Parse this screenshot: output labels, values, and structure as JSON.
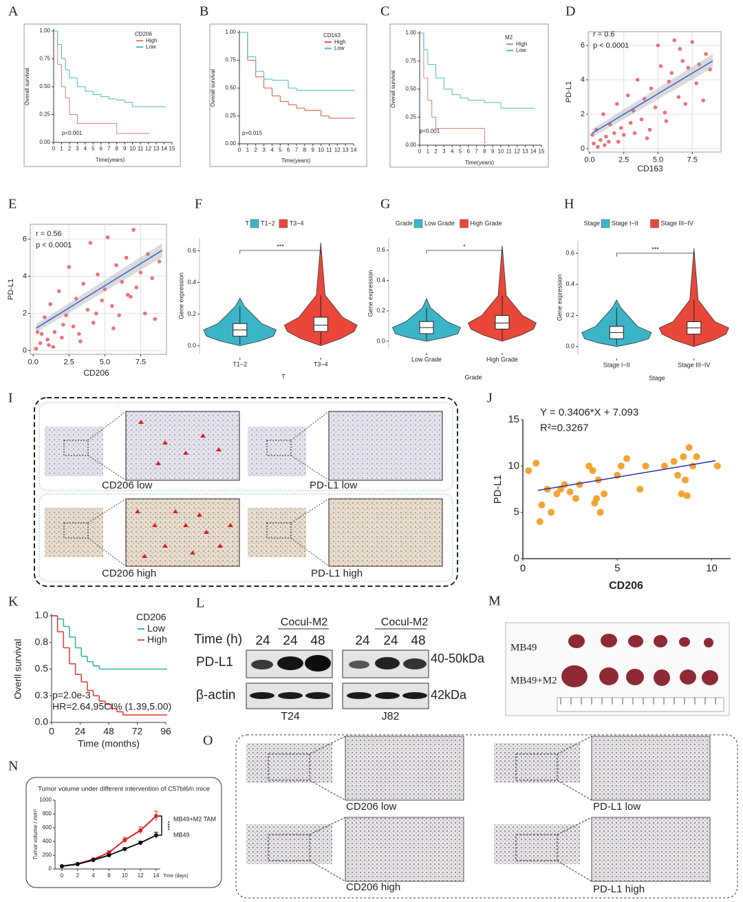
{
  "chart_data": [
    {
      "panel": "A",
      "type": "survival",
      "legend_title": "CD206",
      "ylabel": "Overall survival",
      "xlabel": "Time(years)",
      "annotation": "p<0.001",
      "xlim": [
        0,
        15
      ],
      "xticks": [
        0,
        1,
        2,
        3,
        4,
        5,
        6,
        7,
        8,
        9,
        10,
        11,
        12,
        13,
        14,
        15
      ],
      "ylim": [
        0,
        1
      ],
      "yticks": [
        {
          "value": 0,
          "label": "0.00"
        },
        {
          "value": 0.25,
          "label": "0.25"
        },
        {
          "value": 0.5,
          "label": "0.50"
        },
        {
          "value": 0.75,
          "label": "0.75"
        },
        {
          "value": 1,
          "label": "1.00"
        }
      ],
      "series": [
        {
          "name": "High",
          "color": "#d9826b",
          "x": [
            0,
            0.5,
            1,
            1.5,
            2,
            3,
            8,
            12
          ],
          "values": [
            1,
            0.7,
            0.5,
            0.4,
            0.25,
            0.17,
            0.08,
            0.08
          ]
        },
        {
          "name": "Low",
          "color": "#4bb8c4",
          "x": [
            0,
            0.5,
            1,
            1.5,
            2,
            3,
            4,
            5,
            6,
            7,
            8,
            9,
            10,
            12,
            14
          ],
          "values": [
            1,
            0.88,
            0.75,
            0.65,
            0.58,
            0.5,
            0.46,
            0.43,
            0.41,
            0.39,
            0.38,
            0.36,
            0.32,
            0.32,
            0.32
          ]
        }
      ]
    },
    {
      "panel": "B",
      "type": "survival",
      "legend_title": "CD163",
      "ylabel": "Overall survival",
      "xlabel": "Time(years)",
      "annotation": "p=0.015",
      "xlim": [
        0,
        14
      ],
      "xticks": [
        0,
        1,
        2,
        3,
        4,
        5,
        6,
        7,
        8,
        9,
        10,
        11,
        12,
        13,
        14
      ],
      "ylim": [
        0,
        1
      ],
      "yticks": [
        {
          "value": 0,
          "label": "0.00"
        },
        {
          "value": 0.25,
          "label": "0.25"
        },
        {
          "value": 0.5,
          "label": "0.50"
        },
        {
          "value": 0.75,
          "label": "0.75"
        },
        {
          "value": 1,
          "label": "1.00"
        }
      ],
      "series": [
        {
          "name": "High",
          "color": "#d9563e",
          "x": [
            0,
            1,
            2,
            3,
            4,
            5,
            6,
            7,
            8,
            10,
            11,
            14
          ],
          "values": [
            1,
            0.75,
            0.6,
            0.5,
            0.43,
            0.38,
            0.35,
            0.32,
            0.3,
            0.25,
            0.23,
            0.23
          ]
        },
        {
          "name": "Low",
          "color": "#4bb8c4",
          "x": [
            0,
            1,
            2,
            3,
            4,
            5,
            6,
            7,
            8,
            14
          ],
          "values": [
            1,
            0.78,
            0.65,
            0.58,
            0.57,
            0.57,
            0.5,
            0.48,
            0.48,
            0.48
          ]
        }
      ]
    },
    {
      "panel": "C",
      "type": "survival",
      "legend_title": "M2",
      "ylabel": "Overall survival",
      "xlabel": "Time(years)",
      "annotation": "p<0.001",
      "xlim": [
        0,
        15
      ],
      "xticks": [
        0,
        1,
        2,
        3,
        4,
        5,
        6,
        7,
        8,
        9,
        10,
        11,
        12,
        13,
        14,
        15
      ],
      "ylim": [
        0,
        1
      ],
      "yticks": [
        {
          "value": 0,
          "label": "0.00"
        },
        {
          "value": 0.25,
          "label": "0.25"
        },
        {
          "value": 0.5,
          "label": "0.50"
        },
        {
          "value": 0.75,
          "label": "0.75"
        },
        {
          "value": 1,
          "label": "1.00"
        }
      ],
      "series": [
        {
          "name": "High",
          "color": "#d9826b",
          "x": [
            0,
            0.5,
            1,
            1.5,
            2,
            8
          ],
          "values": [
            1,
            0.6,
            0.4,
            0.25,
            0.15,
            0.02
          ]
        },
        {
          "name": "Low",
          "color": "#4bb8c4",
          "x": [
            0,
            0.5,
            1,
            2,
            3,
            4,
            5,
            6,
            8,
            10,
            14
          ],
          "values": [
            1,
            0.85,
            0.72,
            0.6,
            0.5,
            0.45,
            0.42,
            0.4,
            0.38,
            0.33,
            0.33
          ]
        }
      ]
    },
    {
      "panel": "D",
      "type": "scatter",
      "stat_r": "r = 0.6",
      "stat_p": "p < 0.0001",
      "xlabel": "CD163",
      "ylabel": "PD-L1",
      "grid": true,
      "xlim": [
        -0.1,
        9.6
      ],
      "xticks": [
        {
          "value": 0,
          "label": "0.0"
        },
        {
          "value": 2.5,
          "label": "2.5"
        },
        {
          "value": 5,
          "label": "5.0"
        },
        {
          "value": 7.5,
          "label": "7.5"
        }
      ],
      "ylim": [
        -0.2,
        6.8
      ],
      "yticks": [
        0,
        2,
        4,
        6
      ],
      "fit": {
        "color": "#3d5bd9",
        "x": [
          0.2,
          9
        ],
        "values": [
          0.9,
          5.1
        ]
      },
      "series": [
        {
          "color": "#e8636a",
          "x": [
            0.3,
            0.5,
            0.8,
            1.0,
            1.2,
            1.5,
            1.8,
            2.0,
            2.3,
            2.5,
            2.8,
            3.0,
            3.2,
            3.5,
            3.8,
            4.0,
            4.2,
            4.5,
            4.8,
            5.0,
            5.2,
            5.5,
            5.8,
            6.0,
            6.2,
            6.5,
            6.8,
            7.0,
            7.2,
            7.5,
            7.8,
            8.0,
            8.3,
            8.5,
            8.8,
            1.1,
            2.1,
            3.3,
            4.4,
            5.6,
            6.6,
            0.2,
            0.6,
            1.4
          ],
          "values": [
            0.3,
            1.1,
            0.5,
            2.0,
            0.7,
            1.4,
            0.9,
            2.6,
            1.2,
            0.8,
            3.1,
            1.5,
            2.2,
            4.0,
            1.7,
            2.9,
            0.6,
            3.5,
            2.4,
            6.0,
            4.8,
            2.1,
            3.9,
            4.4,
            6.3,
            3.0,
            5.1,
            2.6,
            4.7,
            6.2,
            3.8,
            4.9,
            2.8,
            5.5,
            4.6,
            0.2,
            0.4,
            0.9,
            1.1,
            1.6,
            5.8,
            0.8,
            0.1,
            0.4
          ]
        }
      ]
    },
    {
      "panel": "E",
      "type": "scatter",
      "stat_r": "r = 0.56",
      "stat_p": "p < 0.0001",
      "xlabel": "CD206",
      "ylabel": "PD-L1",
      "grid": true,
      "xlim": [
        -0.2,
        9.3
      ],
      "xticks": [
        {
          "value": 0,
          "label": "0.0"
        },
        {
          "value": 2.5,
          "label": "2.5"
        },
        {
          "value": 5,
          "label": "5.0"
        },
        {
          "value": 7.5,
          "label": "7.5"
        }
      ],
      "ylim": [
        -0.2,
        6.8
      ],
      "yticks": [
        0,
        2,
        4,
        6
      ],
      "fit": {
        "color": "#3d5bd9",
        "x": [
          0.2,
          9
        ],
        "values": [
          1.2,
          5.4
        ]
      },
      "series": [
        {
          "color": "#e8636a",
          "x": [
            0.3,
            0.5,
            0.8,
            1.0,
            1.2,
            1.5,
            1.8,
            2.0,
            2.3,
            2.5,
            2.8,
            3.0,
            3.2,
            3.5,
            3.8,
            4.0,
            4.2,
            4.5,
            4.8,
            5.0,
            5.2,
            5.5,
            5.8,
            6.0,
            6.2,
            6.5,
            6.8,
            7.0,
            7.2,
            7.5,
            7.8,
            8.0,
            8.3,
            8.5,
            8.8,
            1.1,
            2.1,
            3.3,
            4.4,
            5.6,
            6.6,
            0.2,
            0.6,
            1.4
          ],
          "values": [
            1.0,
            0.4,
            1.8,
            0.6,
            2.5,
            1.0,
            3.2,
            0.7,
            1.9,
            4.5,
            1.3,
            2.8,
            0.9,
            3.6,
            2.2,
            5.8,
            1.5,
            4.1,
            2.7,
            3.3,
            6.1,
            2.4,
            4.6,
            1.9,
            3.7,
            5.0,
            2.9,
            6.5,
            3.4,
            4.2,
            2.0,
            5.2,
            3.9,
            1.7,
            4.8,
            0.3,
            1.4,
            0.5,
            2.0,
            1.2,
            3.0,
            0.1,
            0.9,
            0.2
          ]
        }
      ]
    },
    {
      "panel": "F",
      "type": "violin",
      "legend_title": "T",
      "xlabel": "T",
      "ylabel": "Gene expression",
      "significance": "***",
      "categories": [
        "T1−2",
        "T3−4"
      ],
      "colors": [
        "#3cb4c8",
        "#e8473a"
      ],
      "ylim": [
        -0.05,
        0.68
      ],
      "yticks": [
        {
          "value": 0,
          "label": "0.0"
        },
        {
          "value": 0.2,
          "label": "0.2"
        },
        {
          "value": 0.4,
          "label": "0.4"
        },
        {
          "value": 0.6,
          "label": "0.6"
        }
      ],
      "whisker_low": [
        0,
        0
      ],
      "q1": [
        0.06,
        0.09
      ],
      "median": [
        0.1,
        0.13
      ],
      "q3": [
        0.14,
        0.18
      ],
      "whisker_high": [
        0.25,
        0.32
      ],
      "max": [
        0.3,
        0.65
      ]
    },
    {
      "panel": "G",
      "type": "violin",
      "legend_title": "Grade",
      "xlabel": "Grade",
      "ylabel": "Gene expression",
      "significance": "*",
      "categories": [
        "Low Grade",
        "High Grade"
      ],
      "colors": [
        "#3cb4c8",
        "#e8473a"
      ],
      "ylim": [
        -0.05,
        0.68
      ],
      "yticks": [
        {
          "value": 0,
          "label": "0.0"
        },
        {
          "value": 0.2,
          "label": "0.2"
        },
        {
          "value": 0.4,
          "label": "0.4"
        },
        {
          "value": 0.6,
          "label": "0.6"
        }
      ],
      "whisker_low": [
        0,
        0
      ],
      "q1": [
        0.05,
        0.08
      ],
      "median": [
        0.09,
        0.12
      ],
      "q3": [
        0.13,
        0.17
      ],
      "whisker_high": [
        0.22,
        0.3
      ],
      "max": [
        0.28,
        0.63
      ]
    },
    {
      "panel": "H",
      "type": "violin",
      "legend_title": "Stage",
      "xlabel": "Stage",
      "ylabel": "Gene expression",
      "significance": "***",
      "categories": [
        "Stage I−II",
        "Stage III−IV"
      ],
      "colors": [
        "#3cb4c8",
        "#e8473a"
      ],
      "ylim": [
        -0.05,
        0.68
      ],
      "yticks": [
        {
          "value": 0,
          "label": "0.0"
        },
        {
          "value": 0.2,
          "label": "0.2"
        },
        {
          "value": 0.4,
          "label": "0.4"
        },
        {
          "value": 0.6,
          "label": "0.6"
        }
      ],
      "whisker_low": [
        0,
        0
      ],
      "q1": [
        0.05,
        0.08
      ],
      "median": [
        0.09,
        0.12
      ],
      "q3": [
        0.13,
        0.16
      ],
      "whisker_high": [
        0.25,
        0.3
      ],
      "max": [
        0.3,
        0.63
      ]
    },
    {
      "panel": "J",
      "type": "scatter",
      "stat_r": "Y = 0.3406*X + 7.093",
      "stat_p": "R²=0.3267",
      "xlabel": "CD206",
      "ylabel": "PD-L1",
      "grid": false,
      "xlim": [
        0,
        11
      ],
      "xticks": [
        0,
        5,
        10
      ],
      "ylim": [
        0,
        15
      ],
      "yticks": [
        0,
        5,
        10,
        15
      ],
      "fit": {
        "color": "#2b2bb0",
        "x": [
          0.8,
          10.2
        ],
        "values": [
          7.37,
          10.57
        ]
      },
      "series": [
        {
          "color": "#f39a1e",
          "x": [
            0.3,
            0.7,
            0.9,
            1.0,
            1.3,
            1.5,
            1.8,
            2.0,
            2.2,
            2.5,
            2.8,
            3.0,
            3.5,
            3.7,
            3.8,
            4.0,
            4.1,
            4.3,
            5.0,
            5.2,
            5.5,
            6.2,
            6.5,
            7.5,
            8.0,
            8.2,
            8.4,
            8.5,
            8.6,
            8.8,
            9.0,
            9.2,
            10.3,
            8.7,
            3.9
          ],
          "values": [
            9.5,
            10.3,
            4,
            5.8,
            7.5,
            5,
            7,
            7.5,
            8,
            7.2,
            6.5,
            8,
            10,
            9.5,
            6,
            8.5,
            5,
            7,
            9,
            10,
            10.8,
            7.5,
            10,
            10,
            10.5,
            9,
            7,
            11,
            8.5,
            12,
            10,
            11,
            10,
            6.8,
            6.5
          ]
        }
      ]
    },
    {
      "panel": "K",
      "type": "survival",
      "legend_title": "CD206",
      "ylabel": "Overll survival",
      "xlabel": "Time (months)",
      "annotation": "p=2.0e-3",
      "annotation2": "HR=2.64,95CI% (1.39,5.00)",
      "xlim": [
        0,
        96
      ],
      "xticks": [
        0,
        24,
        48,
        72,
        96
      ],
      "ylim": [
        0,
        1
      ],
      "yticks": [
        {
          "value": 0,
          "label": "0.0"
        },
        {
          "value": 0.25,
          "label": "0.3"
        },
        {
          "value": 0.5,
          "label": "0.5"
        },
        {
          "value": 0.75,
          "label": "0.8"
        },
        {
          "value": 1,
          "label": "1.0"
        }
      ],
      "series": [
        {
          "name": "Low",
          "color": "#2fb6a8",
          "x": [
            0,
            5,
            10,
            15,
            20,
            25,
            30,
            35,
            40,
            96
          ],
          "values": [
            1,
            0.97,
            0.9,
            0.8,
            0.7,
            0.62,
            0.57,
            0.53,
            0.5,
            0.5
          ]
        },
        {
          "name": "High",
          "color": "#e0413a",
          "x": [
            0,
            5,
            10,
            15,
            20,
            25,
            30,
            35,
            40,
            45,
            50,
            55,
            60,
            96
          ],
          "values": [
            1,
            0.85,
            0.7,
            0.55,
            0.45,
            0.38,
            0.3,
            0.25,
            0.2,
            0.17,
            0.13,
            0.1,
            0.07,
            0.07
          ]
        }
      ]
    },
    {
      "panel": "N",
      "type": "errline",
      "title": "Tumor volume under different intervention of C57bl6/n mice",
      "ylabel": "Tumor volume / mm³",
      "xlabel": "Time (days)",
      "significance": "****",
      "categories": [
        "0",
        "2",
        "4",
        "8",
        "10",
        "12",
        "14"
      ],
      "ylim": [
        0,
        1000
      ],
      "yticks": [
        0,
        200,
        400,
        600,
        800,
        1000
      ],
      "series": [
        {
          "name": "MB49+M2 TAM",
          "color": "#e02020",
          "values": [
            40,
            75,
            140,
            240,
            420,
            560,
            770
          ],
          "errors": [
            10,
            10,
            15,
            25,
            40,
            50,
            70
          ]
        },
        {
          "name": "MB49",
          "color": "#111111",
          "values": [
            40,
            70,
            130,
            200,
            290,
            380,
            490
          ],
          "errors": [
            5,
            8,
            10,
            15,
            20,
            25,
            45
          ]
        }
      ]
    }
  ],
  "panel_I": {
    "panel": "I",
    "captions": [
      "CD206 low",
      "PD-L1 low",
      "CD206 high",
      "PD-L1 high"
    ]
  },
  "panel_L": {
    "panel": "L",
    "time_label": "Time (h)",
    "groups": [
      {
        "name": "T24",
        "coculture": "Cocul-M2",
        "times": [
          "24",
          "24",
          "48"
        ]
      },
      {
        "name": "J82",
        "coculture": "Cocul-M2",
        "times": [
          "24",
          "24",
          "48"
        ]
      }
    ],
    "proteins": [
      {
        "name": "PD-L1",
        "size": "40-50kDa"
      },
      {
        "name": "β-actin",
        "size": "42kDa"
      }
    ]
  },
  "panel_M": {
    "panel": "M",
    "rows": [
      "MB49",
      "MB49+M2"
    ]
  },
  "panel_O": {
    "panel": "O",
    "captions": [
      "CD206  low",
      "PD-L1 low",
      "CD206 high",
      "PD-L1 high"
    ]
  }
}
